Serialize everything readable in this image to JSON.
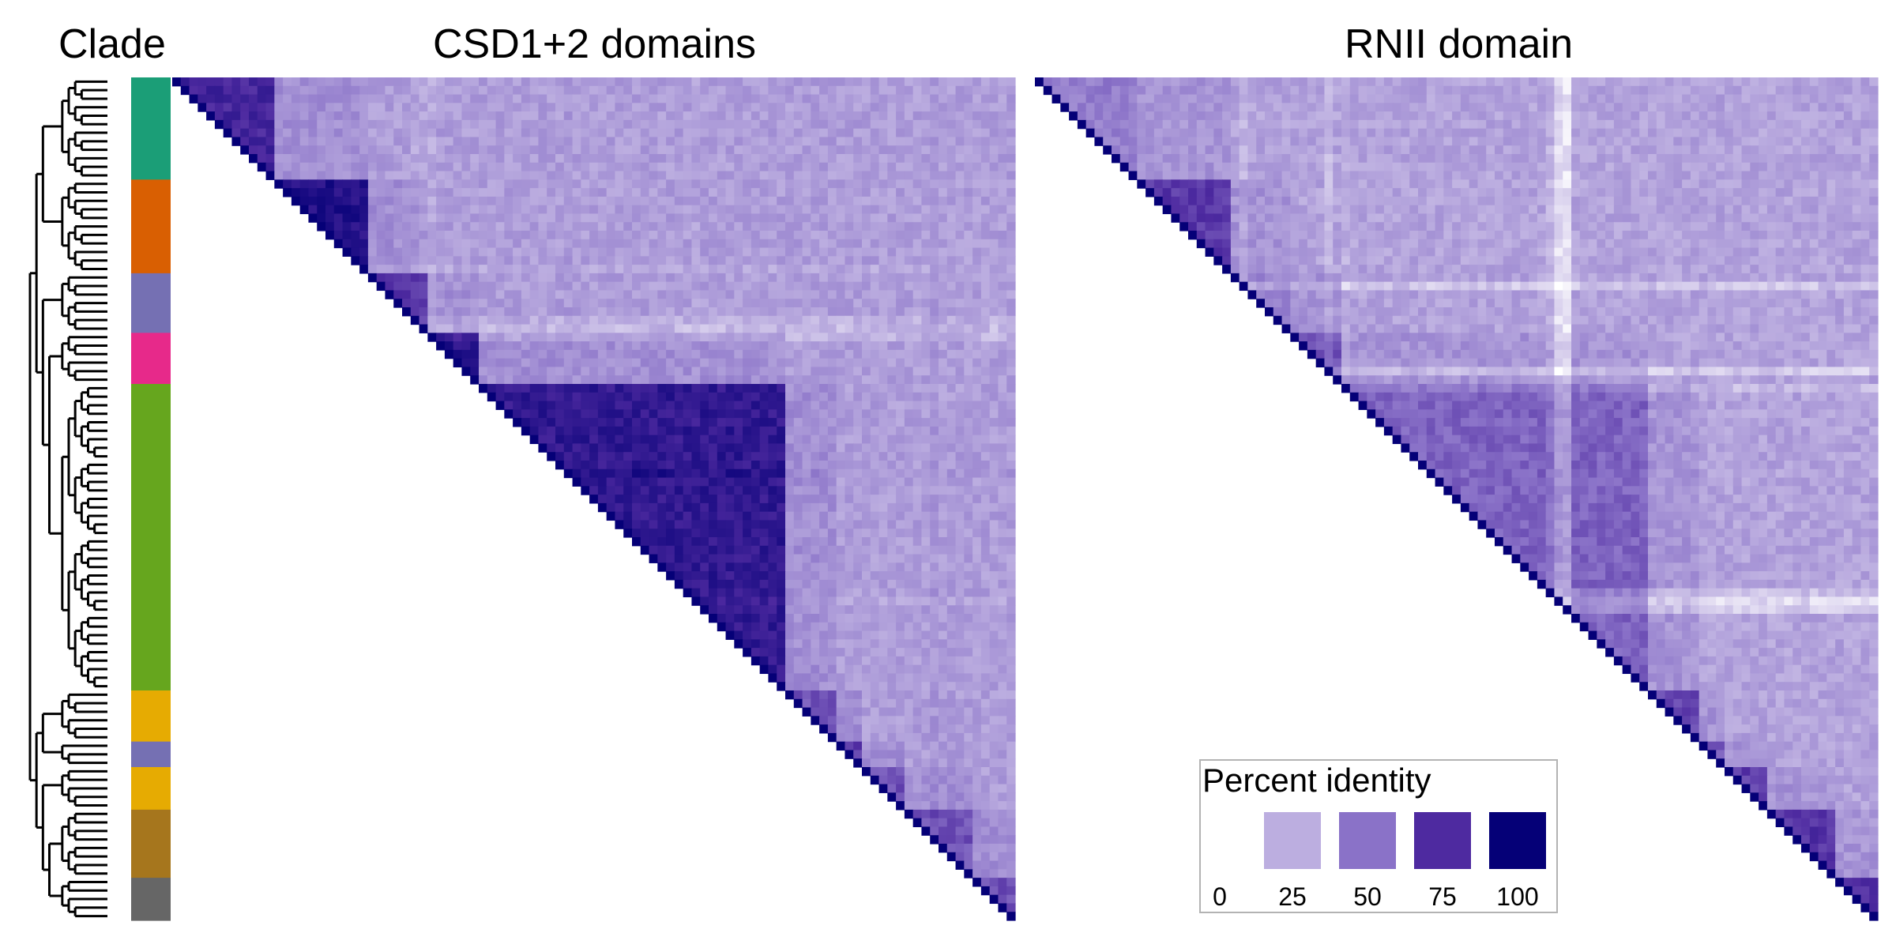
{
  "chart_data": [
    {
      "type": "heatmap",
      "panel": "tree",
      "title": "Clade",
      "clades": [
        {
          "color": "#1b9e77",
          "count": 12
        },
        {
          "color": "#d95f02",
          "count": 11
        },
        {
          "color": "#7570b3",
          "count": 7
        },
        {
          "color": "#e7298a",
          "count": 6
        },
        {
          "color": "#66a61e",
          "count": 36
        },
        {
          "color": "#e6ab02",
          "count": 6
        },
        {
          "color": "#7570b3",
          "count": 3
        },
        {
          "color": "#e6ab02",
          "count": 5
        },
        {
          "color": "#a6761d",
          "count": 8
        },
        {
          "color": "#666666",
          "count": 5
        }
      ]
    },
    {
      "type": "heatmap",
      "panel": "csd",
      "title": "CSD1+2 domains",
      "n": 99,
      "value_range": [
        0,
        100
      ],
      "within_clade_identity": [
        78,
        90,
        72,
        88,
        85,
        60,
        68,
        62,
        60,
        62
      ],
      "between_clade_identity": 32,
      "row_offsets": {
        "22": -4,
        "28": -6,
        "29": -10,
        "30": -8,
        "46": 4,
        "61": -3,
        "89": 6
      }
    },
    {
      "type": "heatmap",
      "panel": "rnii",
      "title": "RNII domain",
      "n": 99,
      "value_range": [
        0,
        100
      ],
      "within_clade_identity": [
        45,
        70,
        42,
        60,
        55,
        65,
        60,
        68,
        72,
        75
      ],
      "between_clade_identity": 30,
      "row_offsets": {
        "24": -12,
        "34": -14,
        "36": -8,
        "60": -10,
        "61": -18,
        "62": -14
      },
      "column_offsets": {
        "62": -14,
        "61": -10
      }
    }
  ],
  "legend": {
    "title": "Percent identity",
    "items": [
      {
        "label": "0",
        "color": "#ffffff"
      },
      {
        "label": "25",
        "color": "#bcaee0"
      },
      {
        "label": "50",
        "color": "#8a72c8"
      },
      {
        "label": "75",
        "color": "#4e2aa0"
      },
      {
        "label": "100",
        "color": "#050077"
      }
    ]
  }
}
